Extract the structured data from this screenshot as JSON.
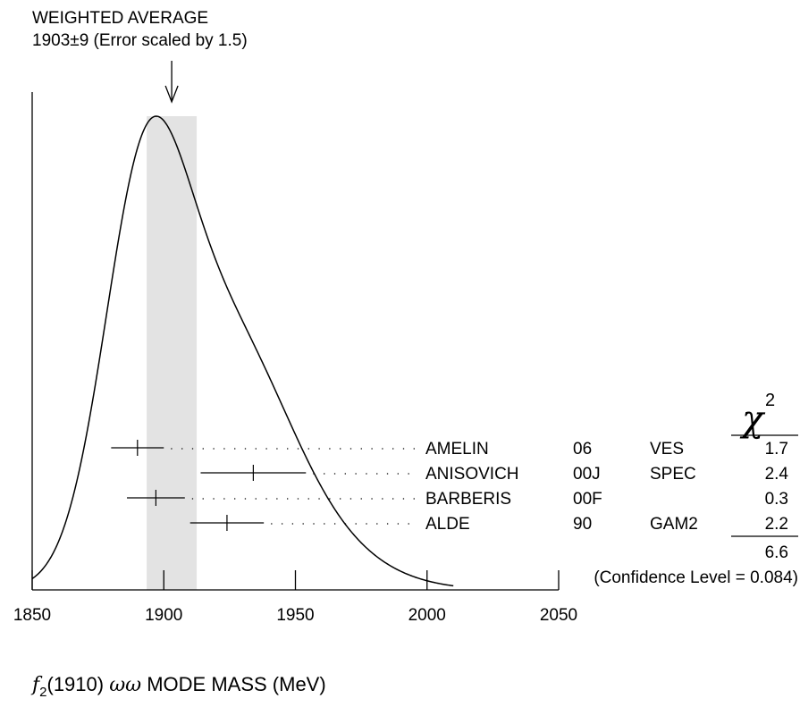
{
  "chart_data": {
    "type": "ideogram",
    "title": "WEIGHTED AVERAGE",
    "subtitle": "1903±9 (Error scaled by 1.5)",
    "weighted_average": {
      "value": 1903,
      "error": 9,
      "scale_factor": 1.5
    },
    "band": [
      1893.5,
      1912.5
    ],
    "xlim": [
      1850,
      2050
    ],
    "x_ticks": [
      1850,
      1900,
      1950,
      2000,
      2050
    ],
    "x_tick_labels": [
      "1850",
      "1900",
      "1950",
      "2000",
      "2050"
    ],
    "xlabel": {
      "symbol": "f",
      "subscript": "2",
      "paren": "(1910) ",
      "omega": "ωω",
      "rest": " MODE MASS (MeV)"
    },
    "chi2_header": "χ",
    "chi2_header_sup": "2",
    "measurements": [
      {
        "author": "AMELIN",
        "year": "06",
        "tech": "VES",
        "value": 1890,
        "err_lo": 10,
        "err_hi": 10,
        "chi2": "1.7"
      },
      {
        "author": "ANISOVICH",
        "year": "00J",
        "tech": "SPEC",
        "value": 1934,
        "err_lo": 20,
        "err_hi": 20,
        "chi2": "2.4"
      },
      {
        "author": "BARBERIS",
        "year": "00F",
        "tech": "",
        "value": 1897,
        "err_lo": 11,
        "err_hi": 11,
        "chi2": "0.3"
      },
      {
        "author": "ALDE",
        "year": "90",
        "tech": "GAM2",
        "value": 1924,
        "err_lo": 14,
        "err_hi": 14,
        "chi2": "2.2"
      }
    ],
    "chi2_total": "6.6",
    "confidence_level": "(Confidence Level = 0.084)"
  }
}
